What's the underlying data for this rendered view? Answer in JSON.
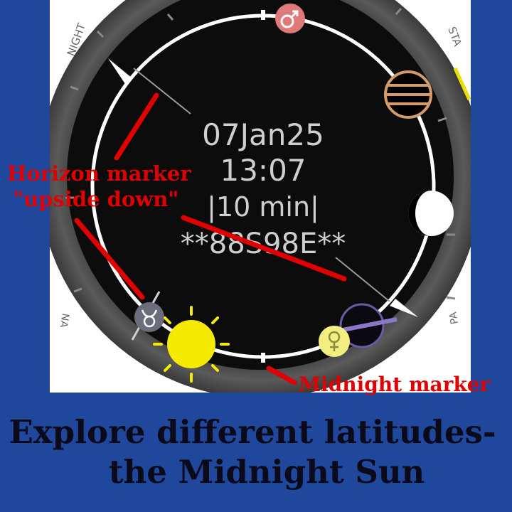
{
  "watch": {
    "date": "07Jan25",
    "time": "13:07",
    "interval": "|10 min|",
    "code": "**88S98E**"
  },
  "annotations": {
    "horizon_line1": "Horizon marker",
    "horizon_line2": "\"upside down\"",
    "midnight": "Midnight marker"
  },
  "footer": {
    "line1": "Explore different latitudes-",
    "line2": "the Midnight Sun"
  },
  "bezel": {
    "left_label": "NIGHT",
    "top_right_label": "STA",
    "bottom_left_label": "NA",
    "right_label": "PA"
  },
  "icons": {
    "mars": "mars-icon",
    "jupiter": "jupiter-icon",
    "moon": "moon-icon",
    "saturn": "saturn-icon",
    "venus": "venus-icon",
    "taurus": "taurus-icon",
    "sun": "sun-icon"
  },
  "colors": {
    "background": "#1f479b",
    "annotation": "#e00000",
    "sun": "#f5ea00",
    "mars": "#e07a7a",
    "jupiter": "#d49a6a",
    "venus": "#f2ee80",
    "saturn": "#6a5aa8",
    "taurus": "#6c6c7c"
  }
}
